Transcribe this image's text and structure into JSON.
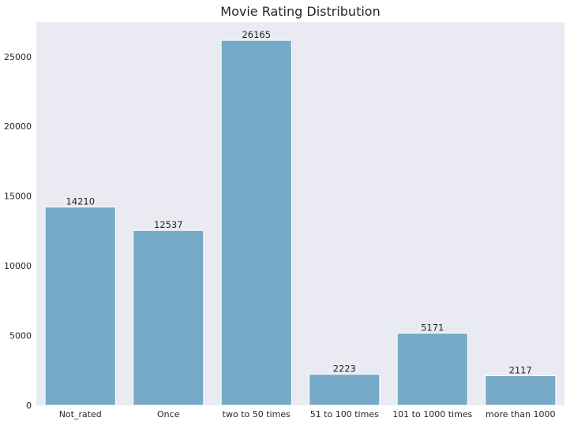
{
  "chart_data": {
    "type": "bar",
    "title": "Movie Rating Distribution",
    "xlabel": "",
    "ylabel": "",
    "categories": [
      "Not_rated",
      "Once",
      "two to 50 times",
      "51 to 100 times",
      "101 to 1000 times",
      "more than 1000"
    ],
    "values": [
      14210,
      12537,
      26165,
      2223,
      5171,
      2117
    ],
    "data_labels": [
      "14210",
      "12537",
      "26165",
      "2223",
      "5171",
      "2117"
    ],
    "ylim": [
      0,
      27474
    ],
    "yticks": [
      0,
      5000,
      10000,
      15000,
      20000,
      25000
    ],
    "ytick_labels": [
      "0",
      "5000",
      "10000",
      "15000",
      "20000",
      "25000"
    ],
    "grid": false,
    "colors": {
      "bar": "#77A9C9",
      "plot_background": "#EAEAF2",
      "text": "#262626"
    }
  }
}
